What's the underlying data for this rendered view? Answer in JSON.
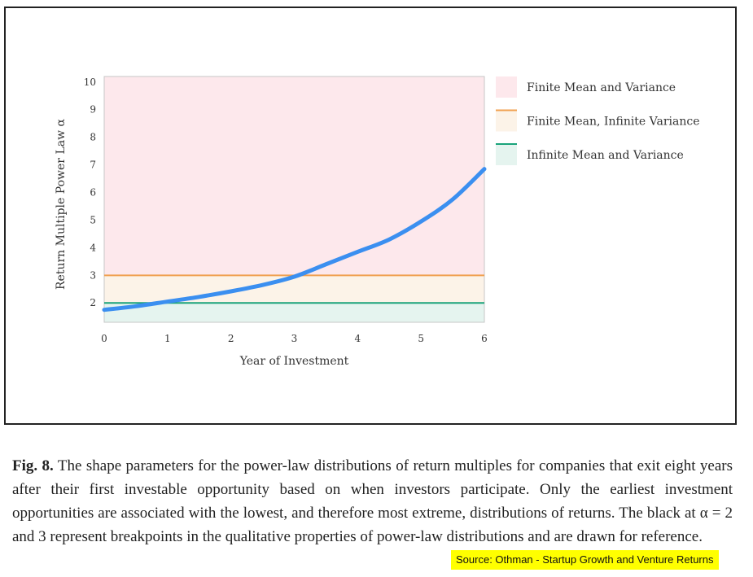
{
  "chart_data": {
    "type": "line",
    "title": "",
    "xlabel": "Year of Investment",
    "ylabel": "Return Multiple Power Law α",
    "xlim": [
      0,
      6
    ],
    "ylim": [
      1.3,
      10.2
    ],
    "x_ticks": [
      0,
      1,
      2,
      3,
      4,
      5,
      6
    ],
    "y_ticks": [
      2,
      3,
      4,
      5,
      6,
      7,
      8,
      9,
      10
    ],
    "grid": false,
    "legend_position": "right",
    "series": [
      {
        "color": "#3b8ff0",
        "x": [
          0,
          0.5,
          1,
          1.5,
          2,
          2.5,
          3,
          3.5,
          4,
          4.5,
          5,
          5.5,
          6
        ],
        "y": [
          1.75,
          1.88,
          2.05,
          2.22,
          2.42,
          2.65,
          2.95,
          3.4,
          3.85,
          4.3,
          4.95,
          5.75,
          6.85
        ]
      }
    ],
    "reference_lines": [
      {
        "y": 3,
        "color": "#f0a050"
      },
      {
        "y": 2,
        "color": "#1aa37a"
      }
    ],
    "regions": [
      {
        "label": "Finite Mean and Variance",
        "from": 3,
        "to": 10.2,
        "color": "#fde8ec",
        "legend_marker": "box"
      },
      {
        "label": "Finite Mean, Infinite Variance",
        "from": 2,
        "to": 3,
        "color": "#fcf3e8",
        "legend_color": "#f0a050",
        "legend_marker": "line-box"
      },
      {
        "label": "Infinite Mean and Variance",
        "from": 1.3,
        "to": 2,
        "color": "#e5f4ef",
        "legend_color": "#1aa37a",
        "legend_marker": "line-box"
      }
    ]
  },
  "caption": {
    "label": "Fig. 8.",
    "text": "The shape parameters for the power-law distributions of return multiples for companies that exit eight years after their first investable opportunity based on when investors participate. Only the earliest investment opportunities are associated with the lowest, and therefore most extreme, distributions of returns. The black at α = 2 and 3 represent breakpoints in the qualitative properties of power-law distributions and are drawn for reference."
  },
  "source": "Source: Othman - Startup Growth and Venture Returns"
}
